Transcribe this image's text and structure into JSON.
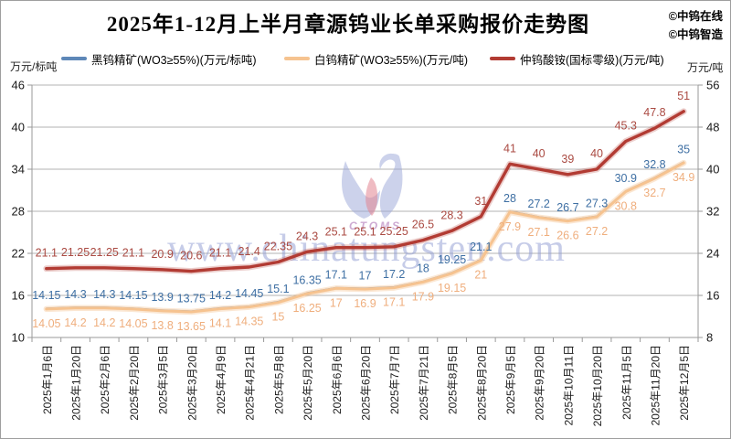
{
  "header": {
    "title": "2025年1-12月上半月章源钨业长单采购报价走势图",
    "credits": [
      "©中钨在线",
      "©中钨智造"
    ]
  },
  "watermark": {
    "logo_text": "CTOMS",
    "site": "www.chinatungsten.com"
  },
  "chart_data": {
    "type": "line",
    "title": "2025年1-12月上半月章源钨业长单采购报价走势图",
    "grid": true,
    "legend_position": "top",
    "categories": [
      "2025年1月6日",
      "2025年1月20日",
      "2025年2月6日",
      "2025年2月20日",
      "2025年3月5日",
      "2025年3月20日",
      "2025年4月9日",
      "2025年4月21日",
      "2025年5月8日",
      "2025年5月20日",
      "2025年6月6日",
      "2025年6月20日",
      "2025年7月7日",
      "2025年7月21日",
      "2025年8月5日",
      "2025年8月20日",
      "2025年9月5日",
      "2025年9月20日",
      "2025年10月11日",
      "2025年10月20日",
      "2025年11月5日",
      "2025年11月20日",
      "2025年12月5日"
    ],
    "left_axis": {
      "unit": "万元/标吨",
      "min": 10,
      "max": 46,
      "ticks": [
        46,
        40,
        34,
        28,
        22,
        16,
        10
      ]
    },
    "right_axis": {
      "unit": "万元/吨",
      "min": 8,
      "max": 56,
      "ticks": [
        56,
        48,
        40,
        32,
        24,
        16,
        8
      ]
    },
    "series": [
      {
        "name": "黑钨精矿(WO3≥55%)(万元/标吨)",
        "axis": "left",
        "color": "#5e88b8",
        "label_color": "#3e6fa3",
        "label_side": "above",
        "values": [
          14.15,
          14.3,
          14.3,
          14.15,
          13.9,
          13.75,
          14.2,
          14.45,
          15.1,
          16.35,
          17.1,
          17,
          17.2,
          18,
          19.25,
          21.1,
          28,
          27.2,
          26.7,
          27.3,
          30.9,
          32.8,
          35
        ]
      },
      {
        "name": "白钨精矿(WO3≥55%)(万元/吨)",
        "axis": "left",
        "color": "#f6c390",
        "label_color": "#efae7d",
        "label_side": "below",
        "values": [
          14.05,
          14.2,
          14.2,
          14.05,
          13.8,
          13.65,
          14.1,
          14.35,
          15,
          16.25,
          17,
          16.9,
          17.1,
          17.9,
          19.15,
          21,
          27.9,
          27.1,
          26.6,
          27.2,
          30.8,
          32.7,
          34.9
        ]
      },
      {
        "name": "仲钨酸铵(国标零级)(万元/吨)",
        "axis": "right",
        "color": "#b23b33",
        "label_color": "#aa4a42",
        "label_side": "above",
        "values": [
          21.1,
          21.25,
          21.25,
          21.1,
          20.9,
          20.6,
          21.1,
          21.4,
          22.35,
          24.3,
          25.1,
          25.1,
          25.25,
          26.5,
          28.3,
          31,
          41,
          40,
          39,
          40,
          45.3,
          47.8,
          51
        ]
      }
    ]
  }
}
